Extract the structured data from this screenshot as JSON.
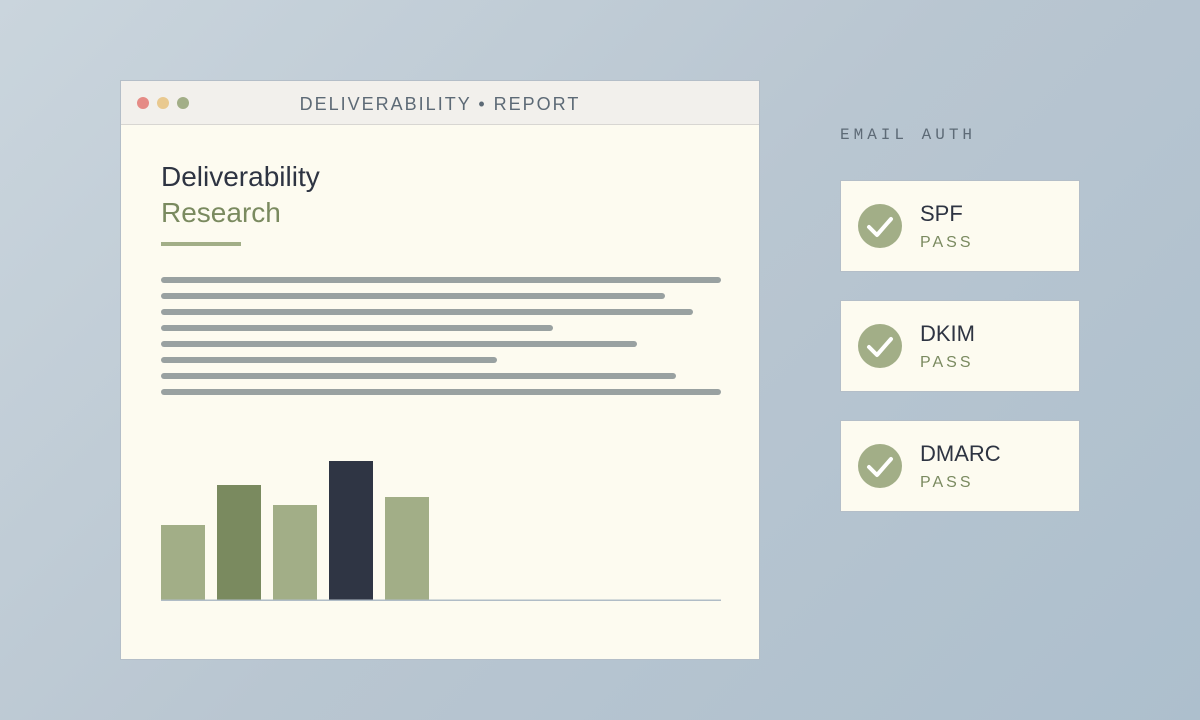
{
  "window": {
    "title": "DELIVERABILITY • REPORT",
    "controls": [
      "close",
      "minimize",
      "maximize"
    ]
  },
  "document": {
    "title": "Deliverability",
    "subtitle": "Research",
    "text_line_fractions": [
      1.0,
      0.9,
      0.95,
      0.7,
      0.85,
      0.6,
      0.92,
      1.0
    ]
  },
  "chart_data": {
    "type": "bar",
    "values": [
      76,
      116,
      96,
      140,
      104
    ],
    "ylim": [
      0,
      160
    ],
    "grid": false,
    "colors": [
      "#a2ae87",
      "#7a8a5f",
      "#a2ae87",
      "#2f3544",
      "#a2ae87"
    ]
  },
  "sidebar": {
    "heading": "EMAIL AUTH",
    "checks": [
      {
        "name": "SPF",
        "status": "PASS",
        "icon": "check-icon"
      },
      {
        "name": "DKIM",
        "status": "PASS",
        "icon": "check-icon"
      },
      {
        "name": "DMARC",
        "status": "PASS",
        "icon": "check-icon"
      }
    ]
  },
  "colors": {
    "accent": "#7a8a5f",
    "accent_light": "#a2ae87",
    "dark": "#2f3544",
    "close": "#e58b86",
    "minimize": "#e9c98f",
    "maximize": "#a2ae87"
  }
}
